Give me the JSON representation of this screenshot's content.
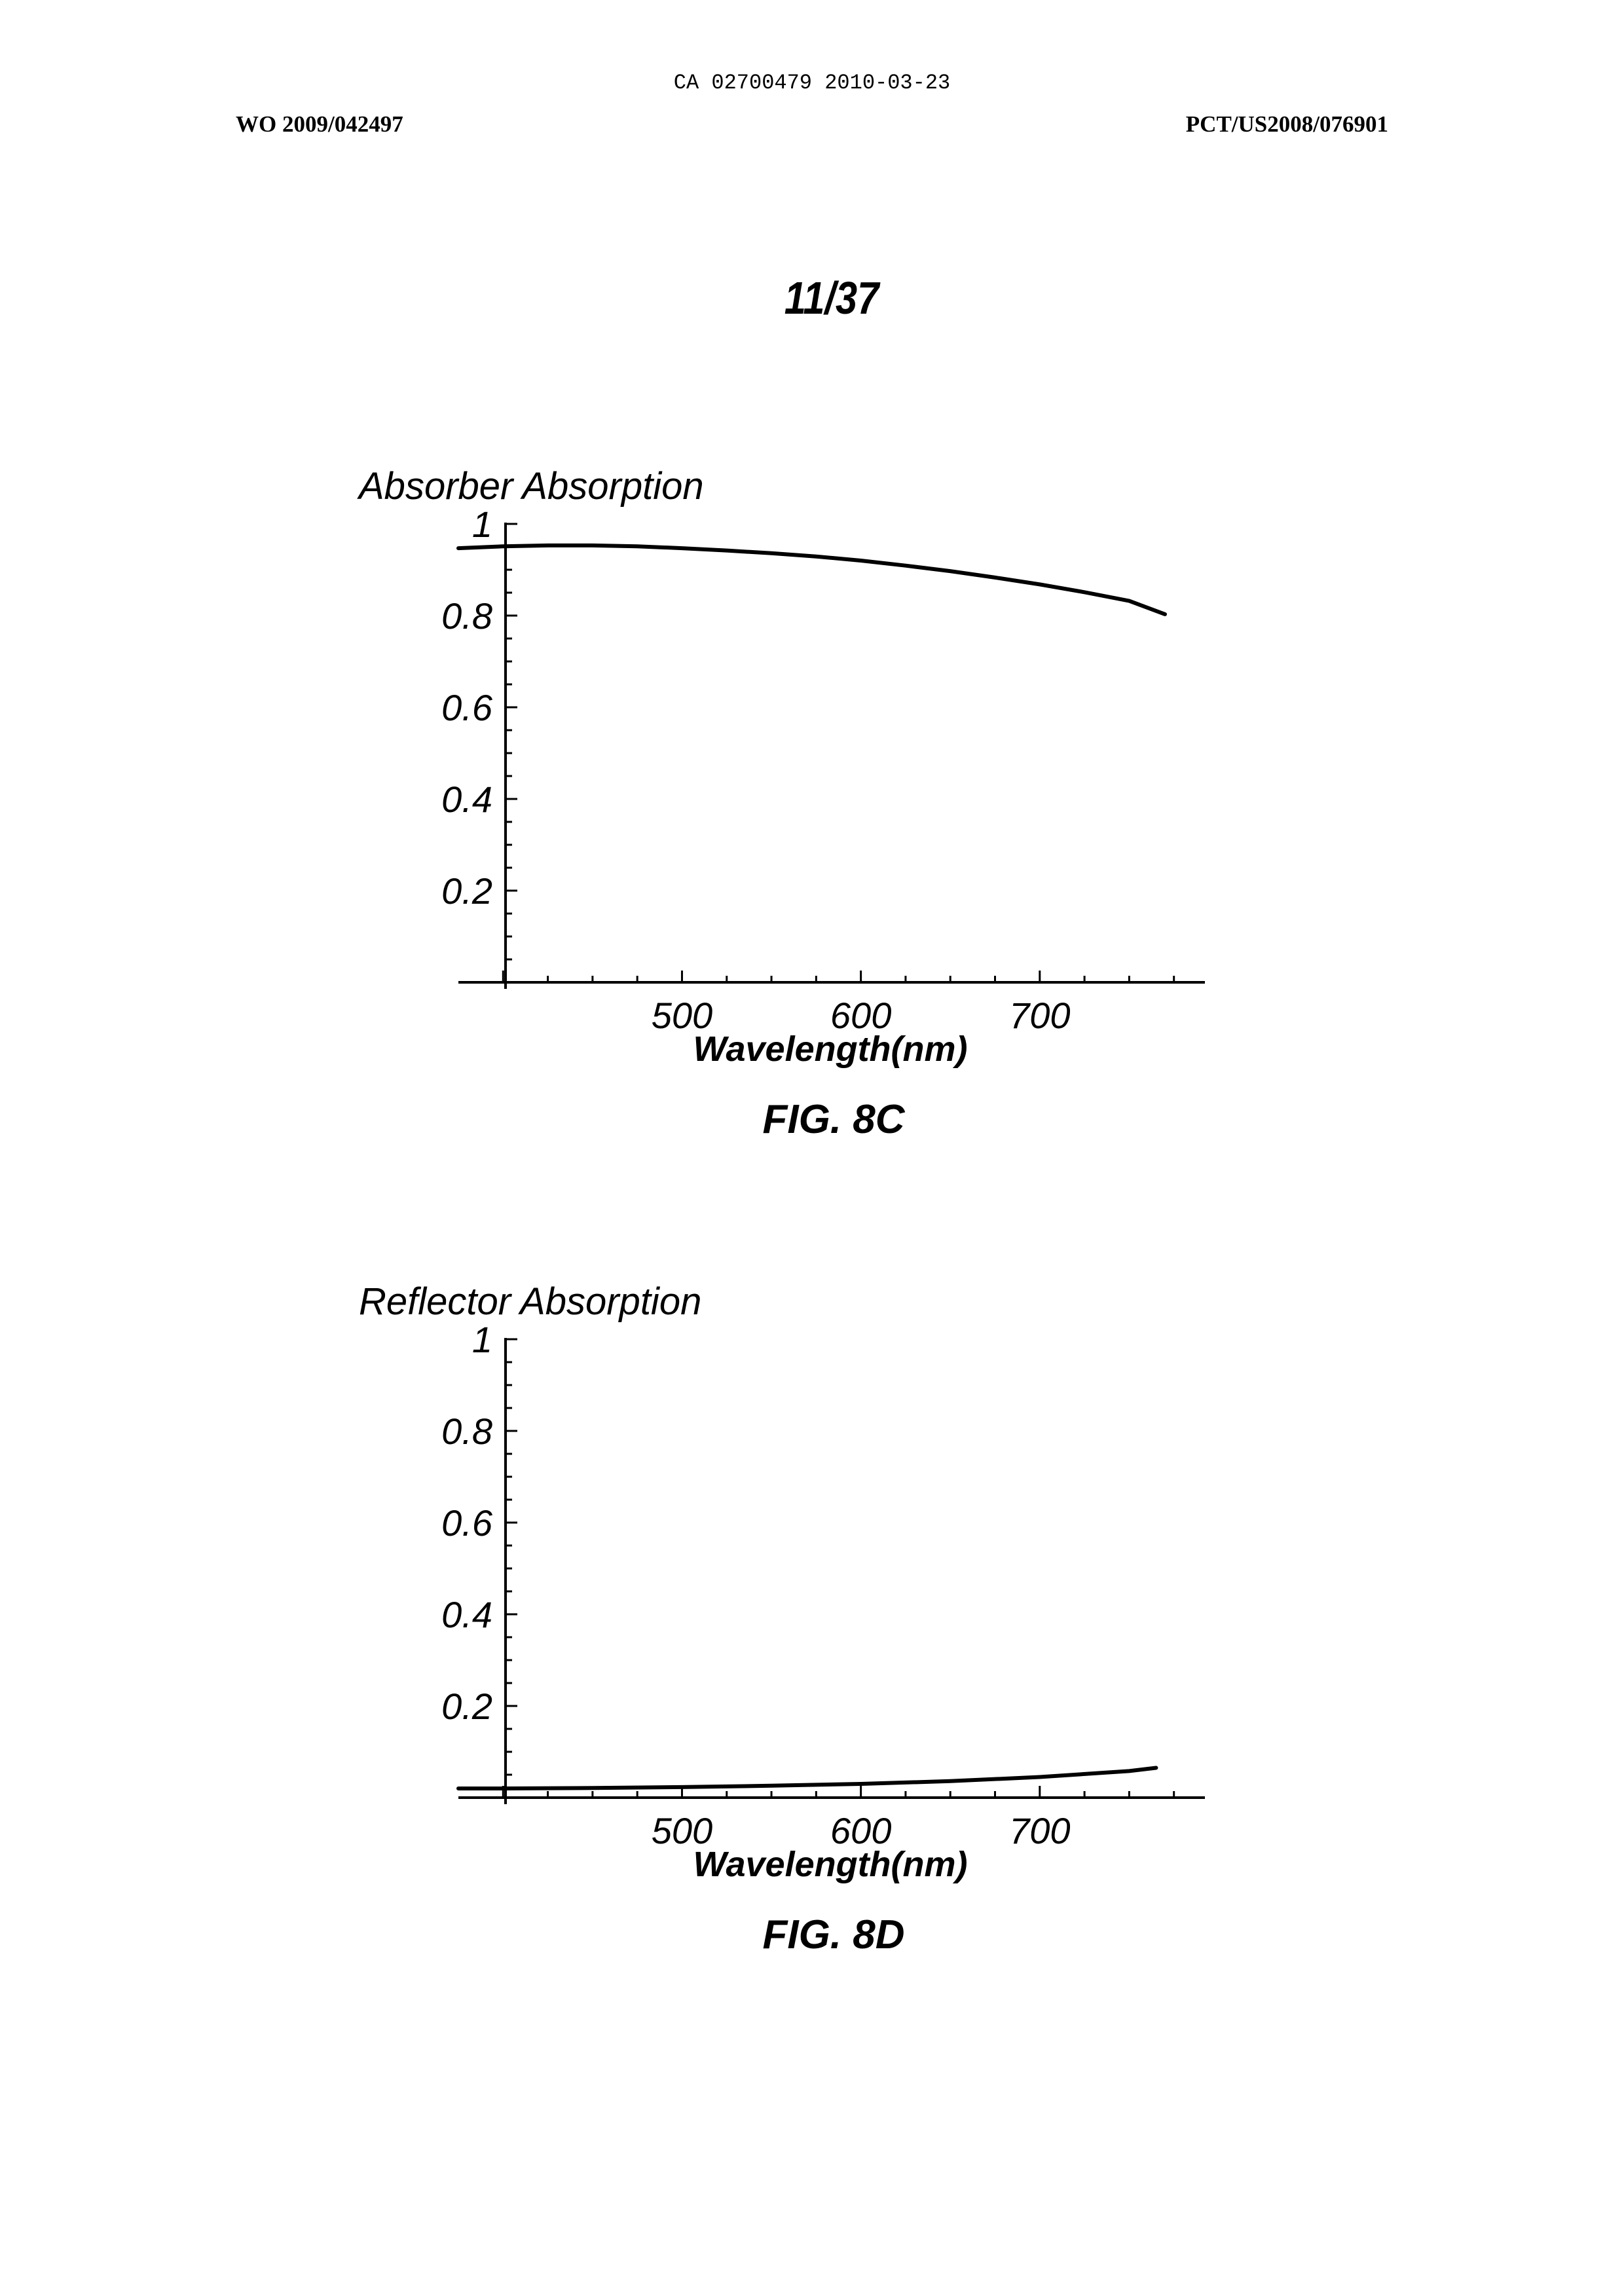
{
  "header": {
    "doc_id": "CA 02700479 2010-03-23",
    "left": "WO 2009/042497",
    "right": "PCT/US2008/076901"
  },
  "sheet_label": "11/37",
  "chart_data": [
    {
      "type": "line",
      "caption": "FIG. 8C",
      "title": "",
      "ylabel": "Absorber Absorption",
      "xlabel": "Wavelength(nm)",
      "xlim": [
        375,
        785
      ],
      "ylim": [
        0,
        1
      ],
      "xticks": [
        500,
        600,
        700
      ],
      "yticks": [
        0.2,
        0.4,
        0.6,
        0.8,
        1
      ],
      "ytick_labels": [
        "0.2",
        "0.4",
        "0.6",
        "0.8",
        "1"
      ],
      "xtick_labels": [
        "500",
        "600",
        "700"
      ],
      "grid": false,
      "series": [
        {
          "x": [
            375,
            400,
            425,
            450,
            475,
            500,
            525,
            550,
            575,
            600,
            625,
            650,
            675,
            700,
            725,
            750,
            770
          ],
          "y": [
            0.947,
            0.951,
            0.953,
            0.953,
            0.951,
            0.947,
            0.942,
            0.936,
            0.929,
            0.92,
            0.909,
            0.897,
            0.883,
            0.868,
            0.851,
            0.832,
            0.803
          ]
        }
      ]
    },
    {
      "type": "line",
      "caption": "FIG. 8D",
      "title": "",
      "ylabel": "Reflector Absorption",
      "xlabel": "Wavelength(nm)",
      "xlim": [
        375,
        785
      ],
      "ylim": [
        0,
        1
      ],
      "xticks": [
        500,
        600,
        700
      ],
      "yticks": [
        0.2,
        0.4,
        0.6,
        0.8,
        1
      ],
      "ytick_labels": [
        "0.2",
        "0.4",
        "0.6",
        "0.8",
        "1"
      ],
      "xtick_labels": [
        "500",
        "600",
        "700"
      ],
      "grid": false,
      "series": [
        {
          "x": [
            375,
            400,
            450,
            500,
            550,
            600,
            650,
            700,
            750,
            765
          ],
          "y": [
            0.02,
            0.02,
            0.021,
            0.023,
            0.026,
            0.03,
            0.036,
            0.045,
            0.058,
            0.065
          ]
        }
      ]
    }
  ]
}
